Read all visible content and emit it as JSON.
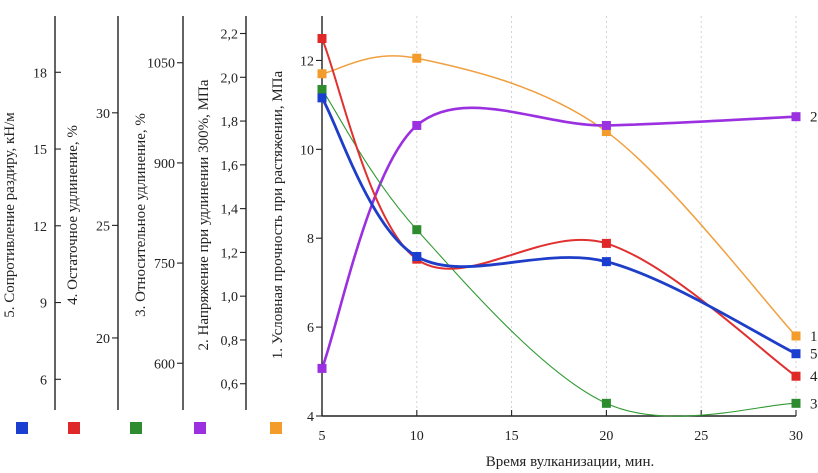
{
  "chart_data": {
    "type": "line",
    "xlabel": "Время вулканизации, мин.",
    "x_ticks": [
      5,
      10,
      15,
      20,
      25,
      30
    ],
    "xlim": [
      5,
      30
    ],
    "grid": "vertical",
    "legend": "bottom-left",
    "axes": [
      {
        "id": "a5",
        "label": "5. Сопротивление раздиру, кН/м",
        "ticks": [
          6,
          9,
          12,
          15,
          18
        ],
        "range": [
          4.8,
          20.2
        ],
        "tick_side": "right"
      },
      {
        "id": "a4",
        "label": "4. Остаточное удлинение, %",
        "ticks": [
          20,
          25,
          30
        ],
        "range": [
          16.8,
          34.3
        ],
        "tick_side": "left"
      },
      {
        "id": "a3",
        "label": "3. Относительное удлинение, %",
        "ticks": [
          600,
          750,
          900,
          1050
        ],
        "range": [
          530,
          1120
        ],
        "tick_side": "left"
      },
      {
        "id": "a2",
        "label": "2. Напряжение при удлинении 300%, МПа",
        "ticks": [
          0.6,
          0.8,
          1.0,
          1.2,
          1.4,
          1.6,
          1.8,
          2.0,
          2.2
        ],
        "range": [
          0.48,
          2.28
        ],
        "tick_side": "left"
      },
      {
        "id": "a1",
        "label": "1. Условная прочность при растяжении, МПа",
        "ticks": [
          4,
          6,
          8,
          10,
          12
        ],
        "range": [
          4,
          13
        ],
        "tick_side": "left"
      }
    ],
    "series": [
      {
        "name": "1",
        "axis": "a1",
        "color": "#f0a040",
        "marker": "#f39c2c",
        "stroke_width": 1.5,
        "x": [
          5,
          10,
          20,
          30
        ],
        "y": [
          11.7,
          12.05,
          10.4,
          5.8
        ]
      },
      {
        "name": "2",
        "axis": "a2",
        "color": "#9b30e0",
        "marker": "#9b30e0",
        "stroke_width": 2.6,
        "x": [
          5,
          10,
          20,
          30
        ],
        "y": [
          0.67,
          1.78,
          1.78,
          1.82
        ]
      },
      {
        "name": "3",
        "axis": "a3",
        "color": "#2e9930",
        "marker": "#2e8b2e",
        "stroke_width": 1.1,
        "x": [
          5,
          10,
          20,
          30
        ],
        "y": [
          1010,
          800,
          540,
          540
        ]
      },
      {
        "name": "4",
        "axis": "a4",
        "color": "#e03030",
        "marker": "#e02828",
        "stroke_width": 2.0,
        "x": [
          5,
          10,
          20,
          30
        ],
        "y": [
          33.3,
          23.5,
          24.2,
          18.3
        ]
      },
      {
        "name": "5",
        "axis": "a5",
        "color": "#1e3ec8",
        "marker": "#1a3fd0",
        "stroke_width": 2.8,
        "x": [
          5,
          10,
          20,
          30
        ],
        "y": [
          17.0,
          10.8,
          10.6,
          7.0
        ]
      }
    ]
  }
}
